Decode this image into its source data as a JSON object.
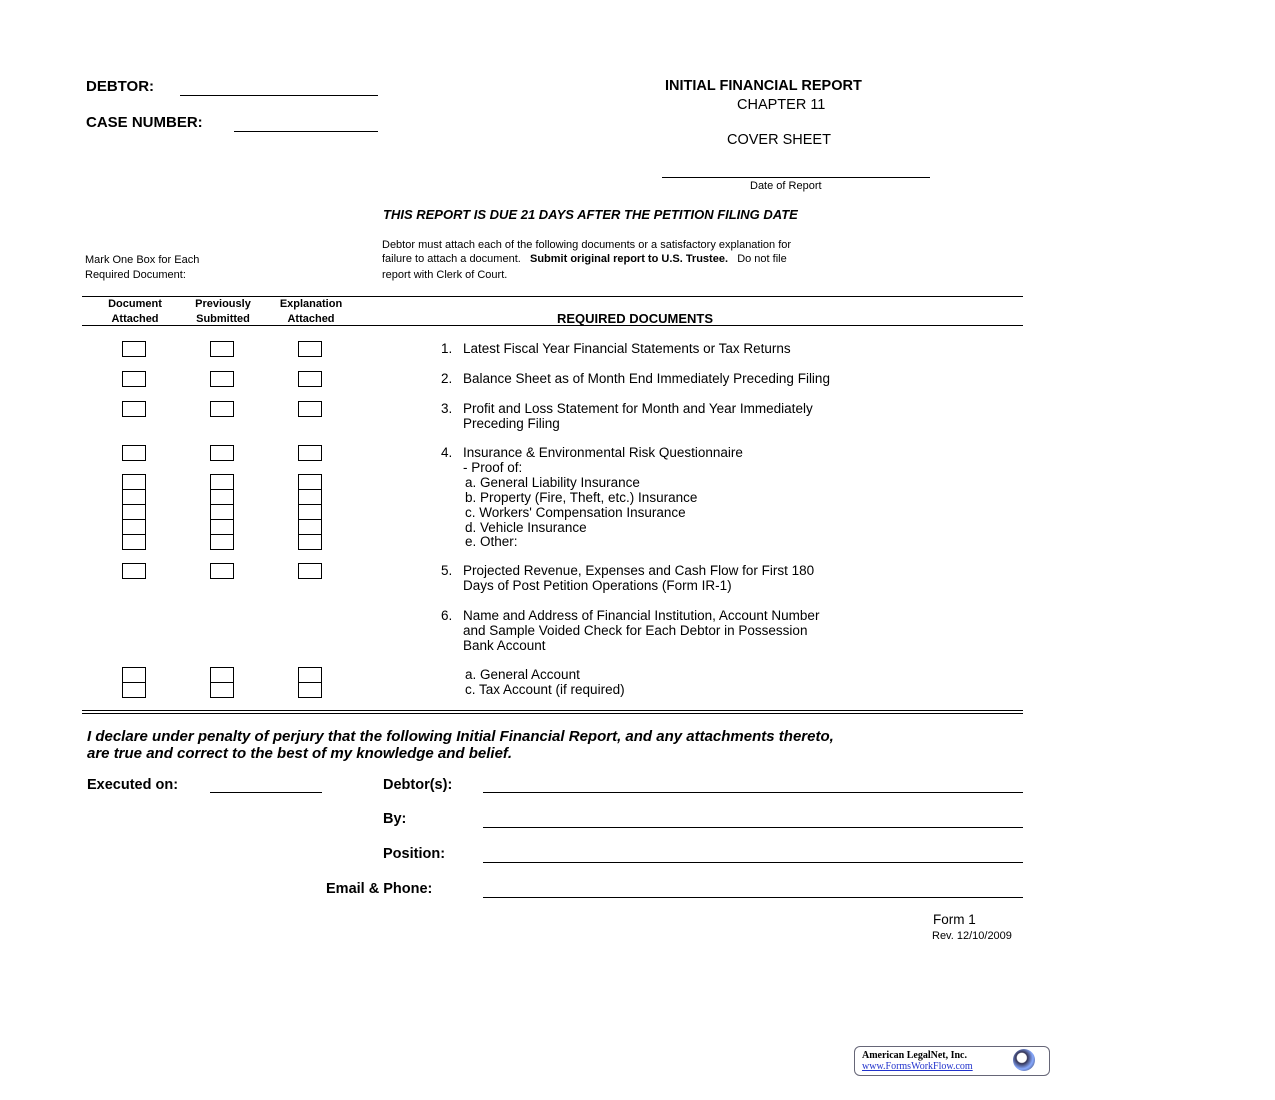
{
  "header": {
    "debtor_label": "DEBTOR:",
    "case_label": "CASE NUMBER:",
    "title": "INITIAL FINANCIAL REPORT",
    "chapter": "CHAPTER 11",
    "cover": "COVER SHEET",
    "date_label": "Date of Report"
  },
  "due_notice": "THIS REPORT IS DUE 21 DAYS AFTER THE PETITION FILING DATE",
  "mark_instruction": [
    "Mark One Box for Each",
    "Required Document:"
  ],
  "attach_instruction": {
    "line1": "Debtor must attach each of the following documents or a satisfactory explanation for",
    "line2a": "failure to attach a document.",
    "line2b": "Submit original report to U.S. Trustee.",
    "line2c": "Do not file",
    "line3": "report with Clerk of Court."
  },
  "columns": [
    {
      "l1": "Document",
      "l2": "Attached"
    },
    {
      "l1": "Previously",
      "l2": "Submitted"
    },
    {
      "l1": "Explanation",
      "l2": "Attached"
    }
  ],
  "required_header": "REQUIRED DOCUMENTS",
  "items": [
    {
      "num": "1.",
      "lines": [
        "Latest Fiscal Year Financial Statements or Tax Returns"
      ]
    },
    {
      "num": "2.",
      "lines": [
        "Balance Sheet as of Month End Immediately Preceding Filing"
      ]
    },
    {
      "num": "3.",
      "lines": [
        "Profit and Loss Statement for Month and Year Immediately",
        "Preceding Filing"
      ]
    },
    {
      "num": "4.",
      "lines": [
        "Insurance & Environmental Risk Questionnaire",
        "- Proof of:",
        "a. General Liability Insurance",
        "b. Property (Fire, Theft, etc.) Insurance",
        "c. Workers' Compensation Insurance",
        "d. Vehicle Insurance",
        "e. Other:"
      ]
    },
    {
      "num": "5.",
      "lines": [
        "Projected Revenue, Expenses and Cash Flow for First 180",
        "Days of Post Petition Operations (Form IR-1)"
      ]
    },
    {
      "num": "6.",
      "lines": [
        "Name and Address of Financial Institution, Account Number",
        "and Sample Voided Check for Each Debtor in Possession",
        "Bank Account"
      ]
    },
    {
      "num": "",
      "lines": [
        "a. General Account",
        "c. Tax Account (if required)"
      ]
    }
  ],
  "declaration": [
    "I declare under penalty of perjury that the following Initial Financial Report, and any attachments thereto,",
    "are true and correct to the best of my knowledge and belief."
  ],
  "signature": {
    "executed": "Executed on:",
    "debtors": "Debtor(s):",
    "by": "By:",
    "position": "Position:",
    "email": "Email & Phone:"
  },
  "footer": {
    "form": "Form 1",
    "rev": "Rev. 12/10/2009"
  },
  "logo": {
    "name": "American LegalNet, Inc.",
    "url": "www.FormsWorkFlow.com"
  }
}
